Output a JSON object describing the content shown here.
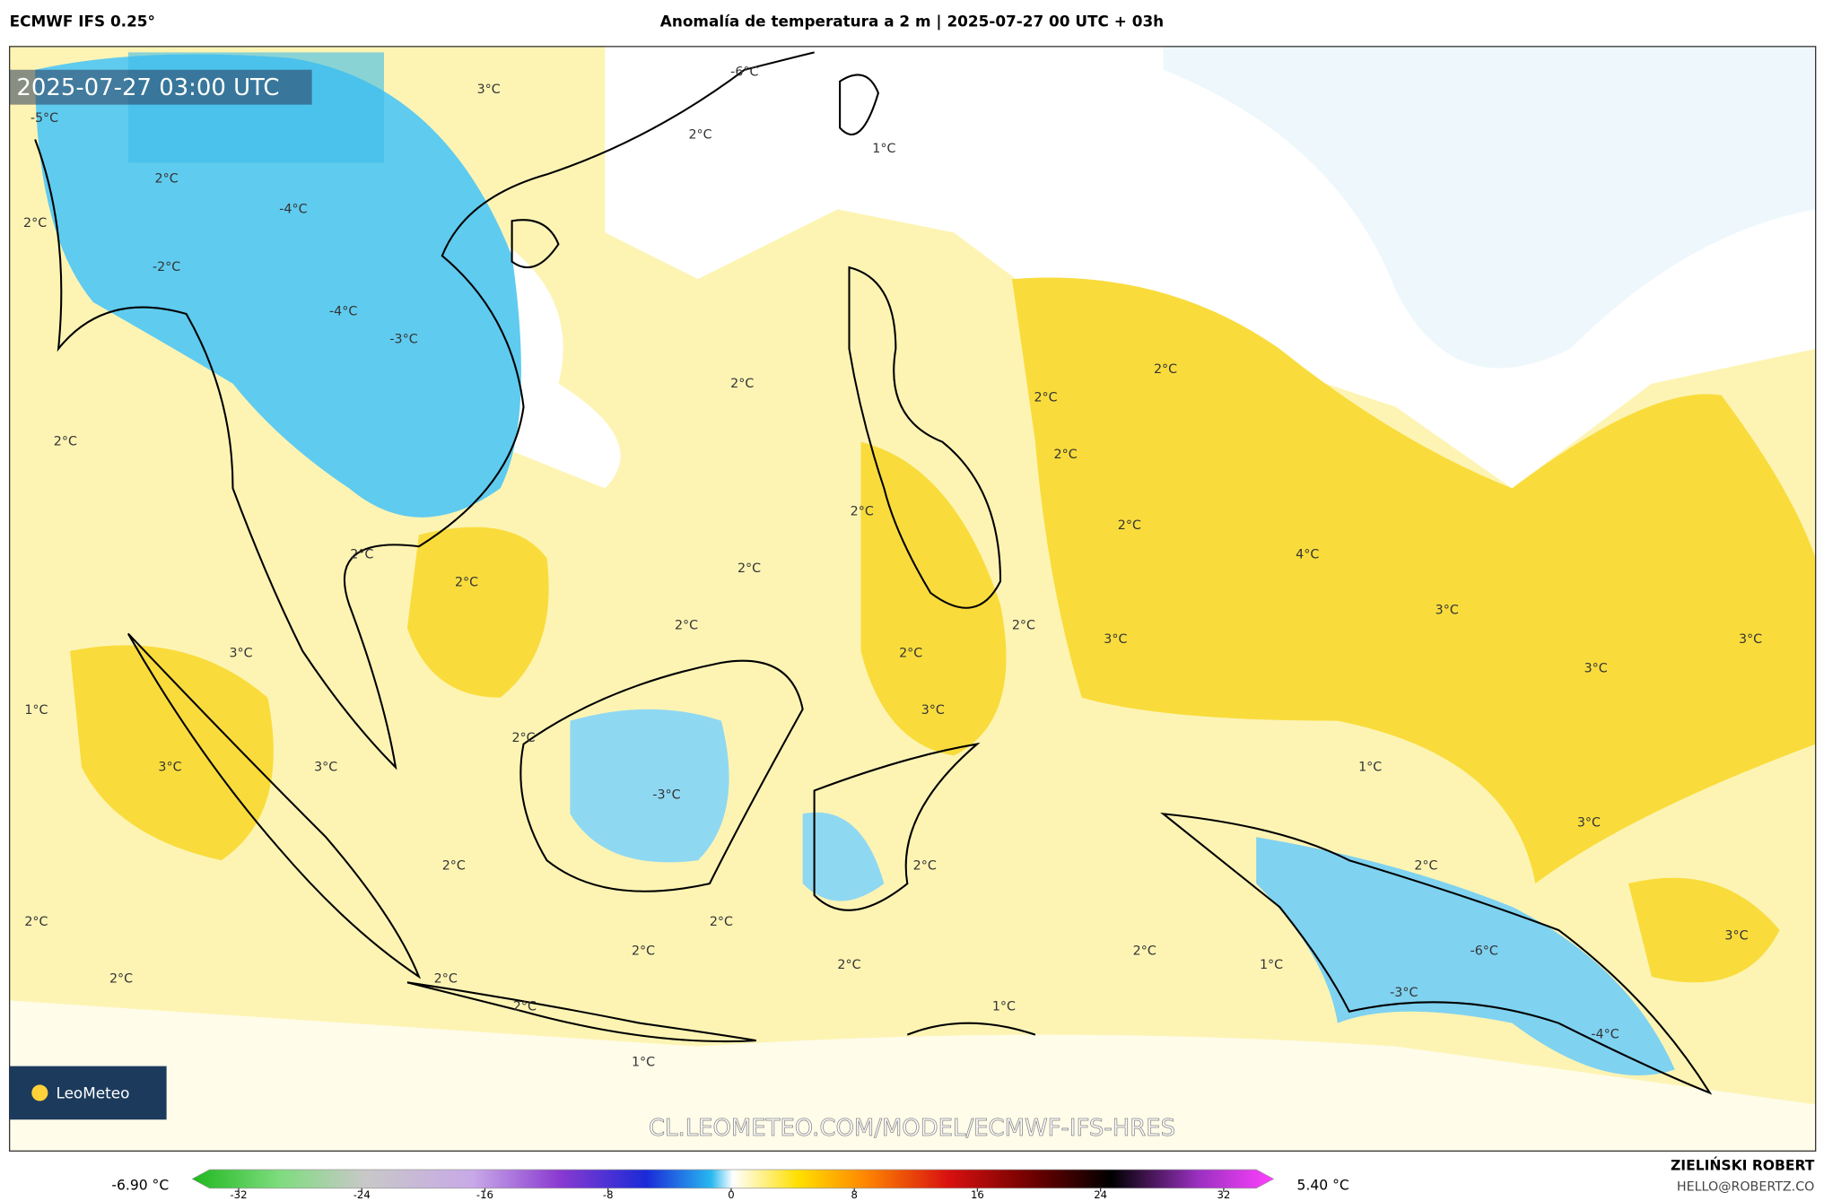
{
  "header": {
    "model": "ECMWF IFS 0.25°",
    "title": "Anomalía de temperatura a 2 m | 2025-07-27 00 UTC + 03h"
  },
  "map": {
    "valid_time": "2025-07-27 03:00 UTC",
    "watermark": "CL.LEOMETEO.COM/MODEL/ECMWF-IFS-HRES",
    "logo": "LeoMeteo",
    "contour_labels": [
      "-6°C",
      "3°C",
      "-5°C",
      "2°C",
      "1°C",
      "2°C",
      "2°C",
      "-4°C",
      "-2°C",
      "-4°C",
      "-3°C",
      "2°C",
      "2°C",
      "2°C",
      "2°C",
      "2°C",
      "2°C",
      "2°C",
      "4°C",
      "2°C",
      "2°C",
      "2°C",
      "3°C",
      "2°C",
      "2°C",
      "3°C",
      "3°C",
      "2°C",
      "3°C",
      "3°C",
      "1°C",
      "3°C",
      "2°C",
      "3°C",
      "3°C",
      "-3°C",
      "1°C",
      "3°C",
      "2°C",
      "2°C",
      "2°C",
      "2°C",
      "2°C",
      "3°C",
      "2°C",
      "2°C",
      "-6°C",
      "1°C",
      "2°C",
      "2°C",
      "2°C",
      "-3°C",
      "2°C",
      "1°C",
      "-4°C",
      "1°C"
    ]
  },
  "colorbar": {
    "min_label": "-6.90 °C",
    "max_label": "5.40 °C",
    "ticks": [
      -32,
      -24,
      -16,
      -8,
      0,
      8,
      16,
      24,
      32
    ]
  },
  "footer": {
    "author": "ZIELIŃSKI ROBERT",
    "email": "HELLO@ROBERTZ.CO"
  }
}
